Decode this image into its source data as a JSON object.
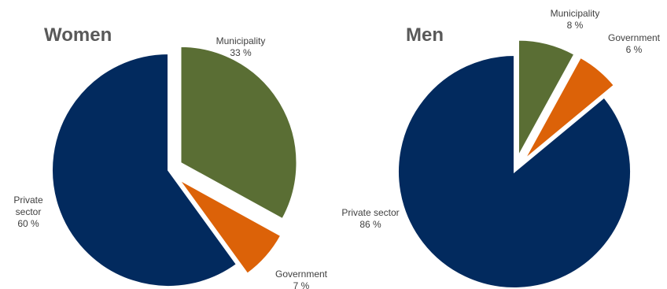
{
  "chart_data": [
    {
      "type": "pie",
      "title": "Women",
      "slices": [
        {
          "name": "Municipality",
          "value": 33,
          "value_label": "33 %",
          "color": "#5a6e34",
          "exploded": true
        },
        {
          "name": "Government",
          "value": 7,
          "value_label": "7 %",
          "color": "#dc6208",
          "exploded": true
        },
        {
          "name": "Private sector",
          "name_lines": [
            "Private",
            "sector"
          ],
          "value": 60,
          "value_label": "60 %",
          "color": "#022a5e",
          "exploded": false
        }
      ]
    },
    {
      "type": "pie",
      "title": "Men",
      "slices": [
        {
          "name": "Municipality",
          "value": 8,
          "value_label": "8 %",
          "color": "#5a6e34",
          "exploded": true
        },
        {
          "name": "Government",
          "value": 6,
          "value_label": "6 %",
          "color": "#dc6208",
          "exploded": true
        },
        {
          "name": "Private sector",
          "value": 86,
          "value_label": "86 %",
          "color": "#022a5e",
          "exploded": false
        }
      ]
    }
  ]
}
